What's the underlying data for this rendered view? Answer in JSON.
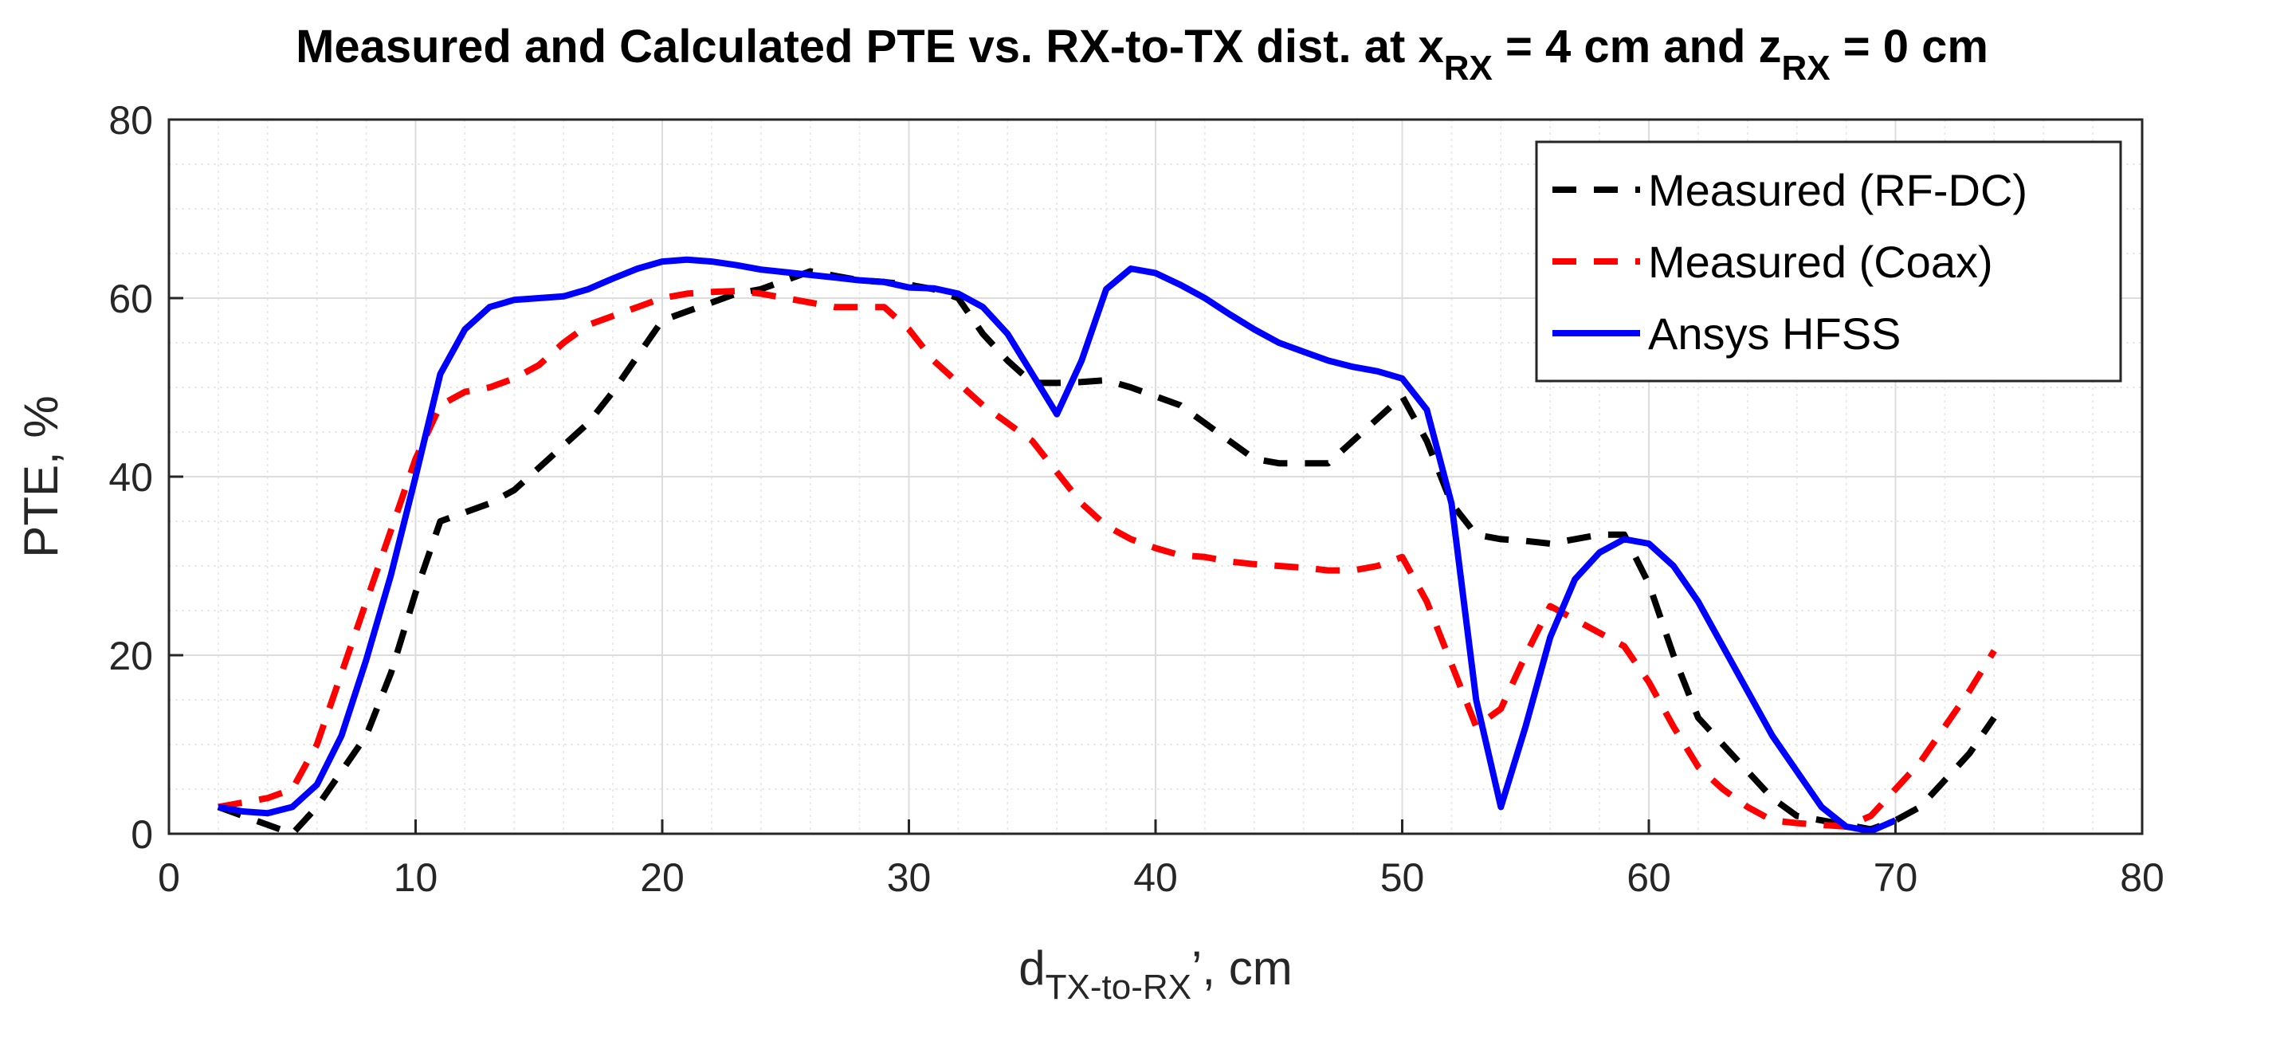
{
  "chart_data": {
    "type": "line",
    "title": {
      "main": "Measured and Calculated PTE vs. RX-to-TX dist. at x",
      "sub1": "RX",
      "mid": " = 4 cm and z",
      "sub2": "RX",
      "end": " = 0 cm"
    },
    "xlabel": {
      "main": "d",
      "sub": "TX-to-RX",
      "end": "’, cm"
    },
    "ylabel": "PTE, %",
    "xlim": [
      0,
      80
    ],
    "ylim": [
      0,
      80
    ],
    "xticks": [
      0,
      10,
      20,
      30,
      40,
      50,
      60,
      70,
      80
    ],
    "yticks": [
      0,
      20,
      40,
      60,
      80
    ],
    "grid": true,
    "minor_grid": true,
    "legend_position": "top-right",
    "series": [
      {
        "name": "Measured (RF-DC)",
        "color": "#000000",
        "style": "dashed",
        "x": [
          2,
          4,
          5,
          6,
          7,
          8,
          9,
          10,
          11,
          12,
          13,
          14,
          15,
          16,
          17,
          18,
          19,
          20,
          21,
          22,
          23,
          24,
          25,
          26,
          27,
          28,
          29,
          30,
          31,
          32,
          33,
          34,
          35,
          36,
          37,
          38,
          39,
          40,
          41,
          42,
          43,
          44,
          45,
          46,
          47,
          48,
          49,
          50,
          51,
          52,
          53,
          54,
          55,
          56,
          57,
          58,
          59,
          60,
          61,
          62,
          63,
          64,
          65,
          66,
          67,
          68,
          69,
          70,
          71,
          72,
          73,
          74
        ],
        "y": [
          3,
          1,
          0,
          3,
          7,
          11,
          18,
          27,
          35,
          36,
          37,
          38.5,
          41,
          43.5,
          46,
          49.5,
          53.5,
          57.5,
          58.5,
          59.5,
          60.5,
          61,
          62,
          63,
          62.5,
          62,
          61.8,
          61.5,
          61,
          60,
          56,
          53,
          50.5,
          50.5,
          50.6,
          50.8,
          50,
          49,
          48,
          46,
          44,
          42,
          41.5,
          41.5,
          41.5,
          44,
          46.5,
          49,
          44,
          37,
          33.5,
          33,
          32.8,
          32.5,
          33,
          33.5,
          33.5,
          28,
          20,
          13,
          10,
          7,
          4,
          2,
          1.5,
          1,
          0.5,
          1.5,
          3,
          6,
          9,
          13
        ]
      },
      {
        "name": "Measured (Coax)",
        "color": "#ff0000",
        "style": "dashed",
        "x": [
          2,
          3,
          4,
          5,
          6,
          7,
          8,
          9,
          10,
          11,
          12,
          13,
          14,
          15,
          16,
          17,
          18,
          19,
          20,
          21,
          22,
          23,
          24,
          25,
          26,
          27,
          28,
          29,
          30,
          31,
          32,
          33,
          34,
          35,
          36,
          37,
          38,
          39,
          40,
          41,
          42,
          43,
          44,
          45,
          46,
          47,
          48,
          49,
          50,
          51,
          52,
          53,
          54,
          55,
          56,
          57,
          58,
          59,
          60,
          61,
          62,
          63,
          64,
          65,
          66,
          67,
          68,
          69,
          70,
          71,
          72,
          73,
          74
        ],
        "y": [
          3,
          3.5,
          4,
          5,
          10,
          18,
          26,
          34,
          42,
          48,
          49.5,
          50,
          51,
          52.5,
          55,
          57,
          58,
          59,
          60,
          60.5,
          60.7,
          60.8,
          60.5,
          60,
          59.5,
          59,
          59,
          59,
          56.5,
          53,
          50.5,
          48,
          46,
          44,
          40.5,
          37,
          34.5,
          33,
          32,
          31.2,
          31,
          30.5,
          30.2,
          30,
          29.8,
          29.5,
          29.5,
          30,
          31,
          26,
          19,
          12,
          14,
          20,
          25.5,
          24,
          22.5,
          21,
          17,
          12,
          7.5,
          5,
          3,
          1.5,
          1.2,
          1,
          0.8,
          2,
          5,
          8,
          12,
          16,
          20.5
        ]
      },
      {
        "name": "Ansys HFSS",
        "color": "#0000ff",
        "style": "solid",
        "x": [
          2,
          3,
          4,
          5,
          6,
          7,
          8,
          9,
          10,
          11,
          12,
          13,
          14,
          15,
          16,
          17,
          18,
          19,
          20,
          21,
          22,
          23,
          24,
          25,
          26,
          27,
          28,
          29,
          30,
          31,
          32,
          33,
          34,
          35,
          36,
          37,
          38,
          39,
          40,
          41,
          42,
          43,
          44,
          45,
          46,
          47,
          48,
          49,
          50,
          51,
          52,
          53,
          54,
          55,
          56,
          57,
          58,
          59,
          60,
          61,
          62,
          63,
          64,
          65,
          66,
          67,
          68,
          69,
          70
        ],
        "y": [
          3,
          2.5,
          2.3,
          3,
          5.5,
          11,
          19.5,
          29,
          40,
          51.5,
          56.5,
          59,
          59.8,
          60,
          60.2,
          61,
          62.2,
          63.3,
          64.1,
          64.3,
          64.1,
          63.7,
          63.2,
          62.9,
          62.6,
          62.3,
          62,
          61.8,
          61.2,
          61.1,
          60.5,
          59,
          56,
          51.5,
          47,
          53,
          61,
          63.3,
          62.8,
          61.5,
          60,
          58.2,
          56.5,
          55,
          54,
          53,
          52.3,
          51.8,
          51,
          47.5,
          37,
          15,
          3,
          12,
          22,
          28.5,
          31.5,
          33,
          32.5,
          30,
          26,
          21,
          16,
          11,
          7,
          3,
          0.8,
          0.3,
          1.5
        ]
      }
    ]
  }
}
